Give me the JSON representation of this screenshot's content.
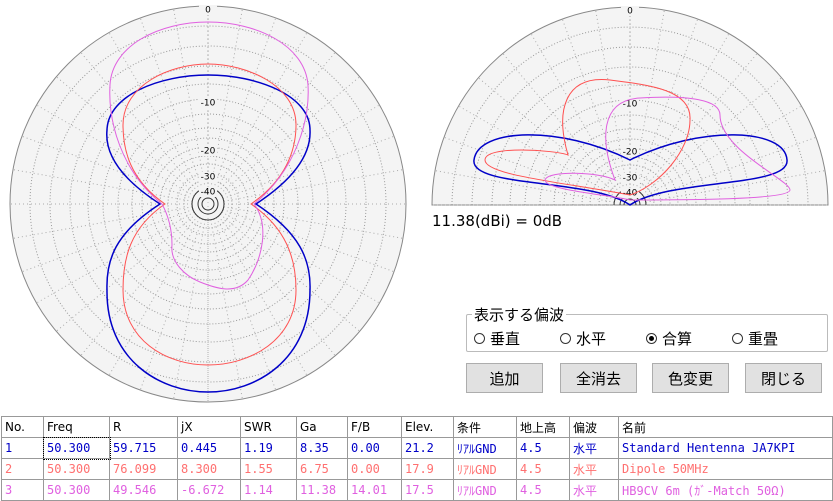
{
  "polar_left_labels": [
    "0",
    "-10",
    "-20",
    "-30",
    "-40"
  ],
  "polar_right_labels": [
    "0",
    "-10",
    "-20",
    "-30",
    "-40"
  ],
  "gain_note": "11.38(dBi) = 0dB",
  "polarization": {
    "title": "表示する偏波",
    "options": [
      "垂直",
      "水平",
      "合算",
      "重畳"
    ],
    "selected": 2
  },
  "buttons": [
    "追加",
    "全消去",
    "色変更",
    "閉じる"
  ],
  "table": {
    "columns": [
      "No.",
      "Freq",
      "R",
      "jX",
      "SWR",
      "Ga",
      "F/B",
      "Elev.",
      "条件",
      "地上高",
      "偏波",
      "名前"
    ],
    "row_colors": [
      "#0000c8",
      "#ff7070",
      "#e060e0"
    ],
    "rows": [
      [
        "1",
        "50.300",
        "59.715",
        "0.445",
        "1.19",
        "8.35",
        "0.00",
        "21.2",
        "ﾘｱﾙGND",
        "4.5",
        "水平",
        "Standard Hentenna JA7KPI"
      ],
      [
        "2",
        "50.300",
        "76.099",
        "8.300",
        "1.55",
        "6.75",
        "0.00",
        "17.9",
        "ﾘｱﾙGND",
        "4.5",
        "水平",
        "Dipole 50MHz"
      ],
      [
        "3",
        "50.300",
        "49.546",
        "-6.672",
        "1.14",
        "11.38",
        "14.01",
        "17.5",
        "ﾘｱﾙGND",
        "4.5",
        "水平",
        "HB9CV 6m (ｶﾞ-Match 50Ω)"
      ]
    ]
  }
}
